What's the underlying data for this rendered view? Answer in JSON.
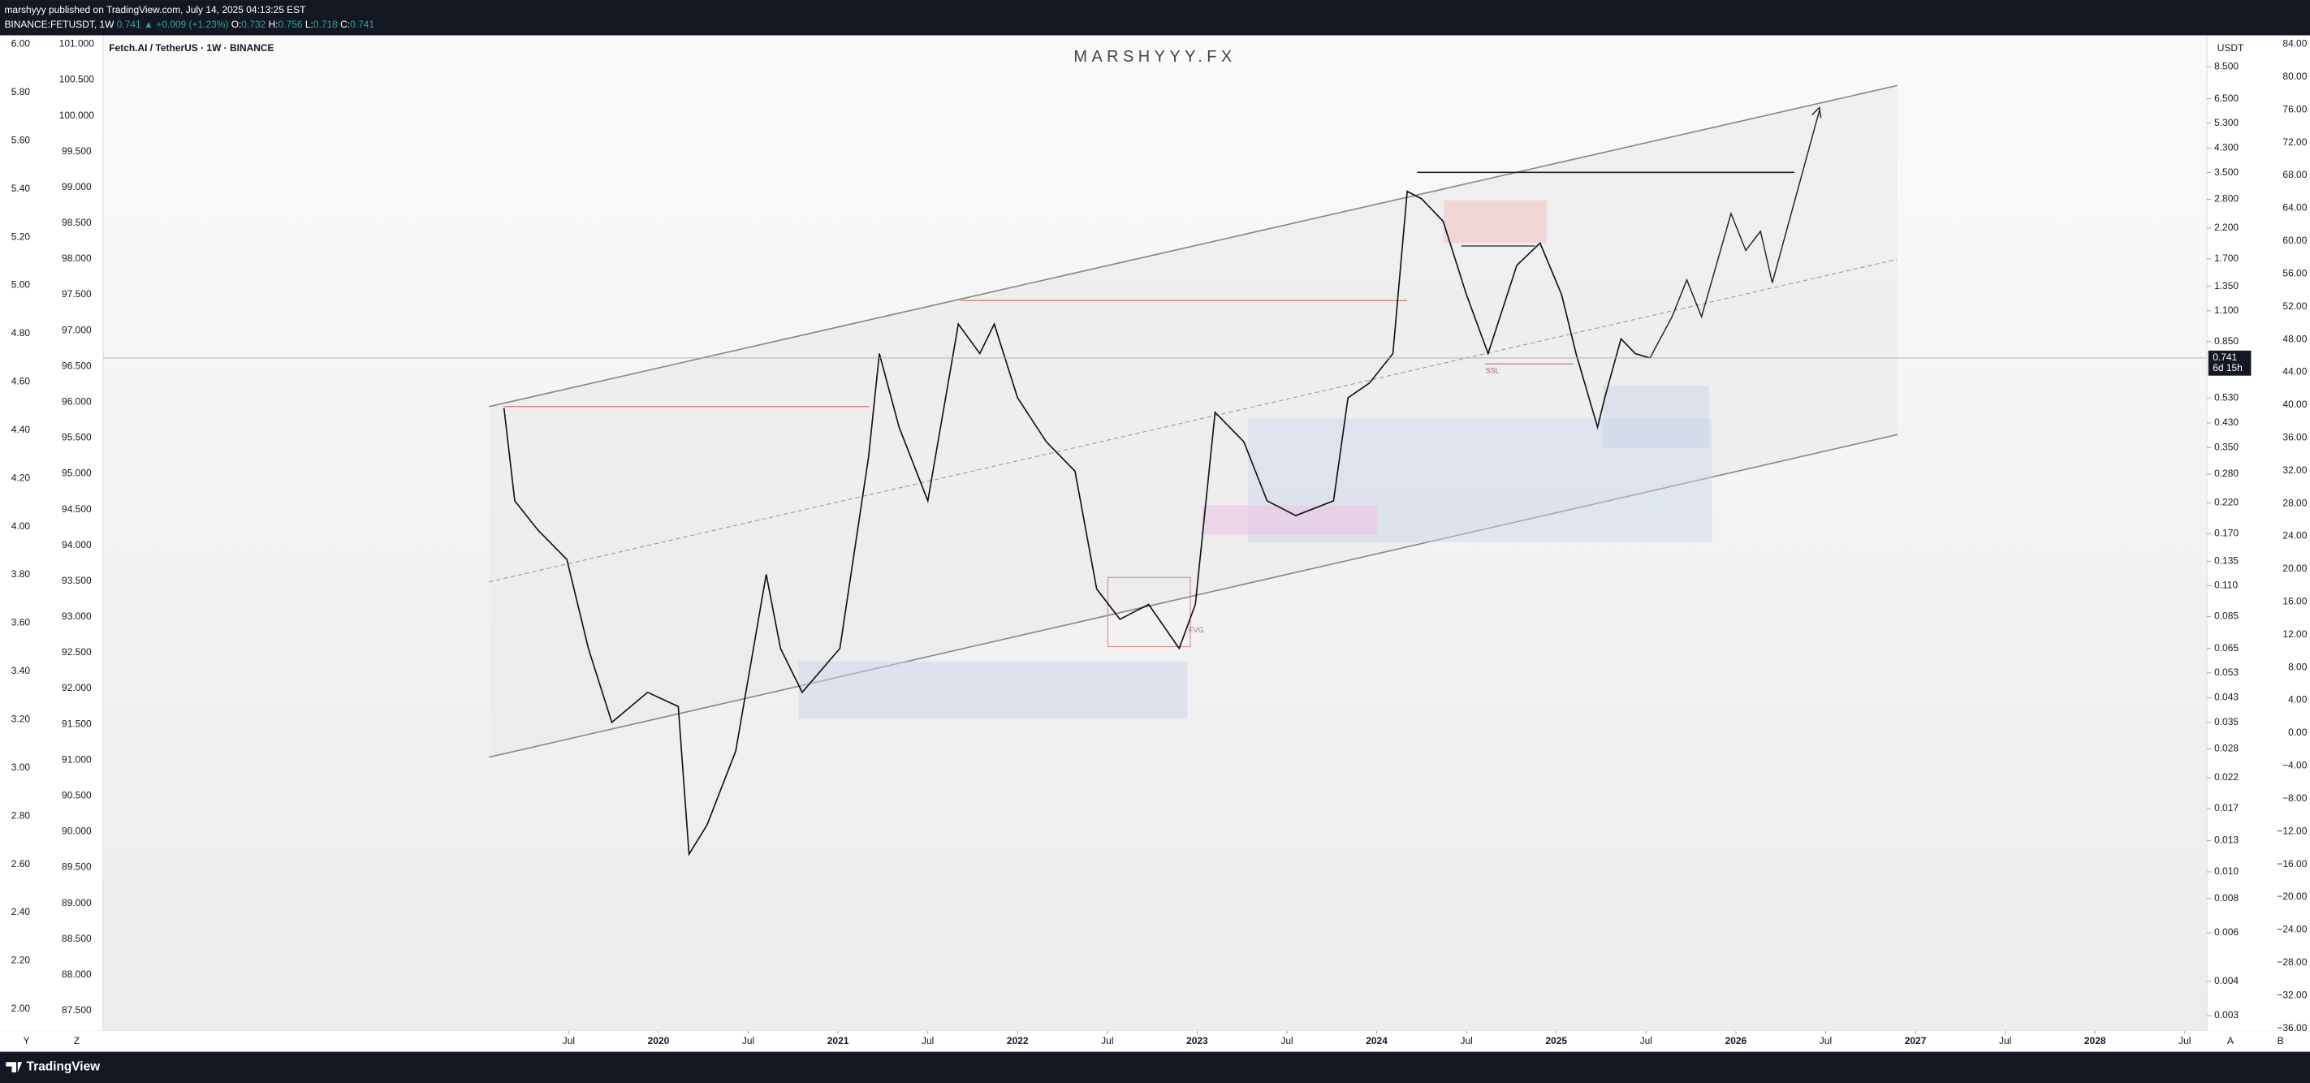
{
  "header": {
    "publisher_line": "marshyyy published on TradingView.com, July 14, 2025 04:13:25 EST",
    "symbol": "BINANCE:FETUSDT, 1W",
    "last": "0.741",
    "change": "▲ +0.009 (+1.23%)",
    "ohlc": [
      {
        "label": "O:",
        "value": "0.732"
      },
      {
        "label": "H:",
        "value": "0.756"
      },
      {
        "label": "L:",
        "value": "0.718"
      },
      {
        "label": "C:",
        "value": "0.741"
      }
    ]
  },
  "chart": {
    "legend": "Fetch.AI / TetherUS · 1W · BINANCE",
    "watermark": "MARSHYYY.FX",
    "ssl_label": "SSL",
    "fvg_label": "FVG",
    "currency": "USDT",
    "last_price": 0.741,
    "countdown": "6d 15h",
    "left_scale_1": [
      "6.00",
      "5.80",
      "5.60",
      "5.40",
      "5.20",
      "5.00",
      "4.80",
      "4.60",
      "4.40",
      "4.20",
      "4.00",
      "3.80",
      "3.60",
      "3.40",
      "3.20",
      "3.00",
      "2.80",
      "2.60",
      "2.40",
      "2.20",
      "2.00"
    ],
    "left_scale_2": [
      "101.000",
      "100.500",
      "100.000",
      "99.500",
      "99.000",
      "98.500",
      "98.000",
      "97.500",
      "97.000",
      "96.500",
      "96.000",
      "95.500",
      "95.000",
      "94.500",
      "94.000",
      "93.500",
      "93.000",
      "92.500",
      "92.000",
      "91.500",
      "91.000",
      "90.500",
      "90.000",
      "89.500",
      "89.000",
      "88.500",
      "88.000",
      "87.500"
    ],
    "right_scale_pct": [
      "84.00",
      "80.00",
      "76.00",
      "72.00",
      "68.00",
      "64.00",
      "60.00",
      "56.00",
      "52.00",
      "48.00",
      "44.00",
      "40.00",
      "36.00",
      "32.00",
      "28.00",
      "24.00",
      "20.00",
      "16.00",
      "12.00",
      "8.00",
      "4.00",
      "0.00",
      "−4.00",
      "−8.00",
      "−12.00",
      "−16.00",
      "−20.00",
      "−24.00",
      "−28.00",
      "−32.00",
      "−36.00"
    ],
    "price_ticks": [
      {
        "value": 8.5,
        "label": "8.500"
      },
      {
        "value": 6.5,
        "label": "6.500"
      },
      {
        "value": 5.3,
        "label": "5.300"
      },
      {
        "value": 4.3,
        "label": "4.300"
      },
      {
        "value": 3.5,
        "label": "3.500"
      },
      {
        "value": 2.8,
        "label": "2.800"
      },
      {
        "value": 2.2,
        "label": "2.200"
      },
      {
        "value": 1.7,
        "label": "1.700"
      },
      {
        "value": 1.35,
        "label": "1.350"
      },
      {
        "value": 1.1,
        "label": "1.100"
      },
      {
        "value": 0.85,
        "label": "0.850"
      },
      {
        "value": 0.53,
        "label": "0.530"
      },
      {
        "value": 0.43,
        "label": "0.430"
      },
      {
        "value": 0.35,
        "label": "0.350"
      },
      {
        "value": 0.28,
        "label": "0.280"
      },
      {
        "value": 0.22,
        "label": "0.220"
      },
      {
        "value": 0.17,
        "label": "0.170"
      },
      {
        "value": 0.135,
        "label": "0.135"
      },
      {
        "value": 0.11,
        "label": "0.110"
      },
      {
        "value": 0.085,
        "label": "0.085"
      },
      {
        "value": 0.065,
        "label": "0.065"
      },
      {
        "value": 0.053,
        "label": "0.053"
      },
      {
        "value": 0.043,
        "label": "0.043"
      },
      {
        "value": 0.035,
        "label": "0.035"
      },
      {
        "value": 0.028,
        "label": "0.028"
      },
      {
        "value": 0.022,
        "label": "0.022"
      },
      {
        "value": 0.017,
        "label": "0.017"
      },
      {
        "value": 0.013,
        "label": "0.013"
      },
      {
        "value": 0.01,
        "label": "0.010"
      },
      {
        "value": 0.008,
        "label": "0.008"
      },
      {
        "value": 0.006,
        "label": "0.006"
      },
      {
        "value": 0.004,
        "label": "0.004"
      },
      {
        "value": 0.003,
        "label": "0.003"
      }
    ],
    "time_ticks": [
      {
        "value": 2019.5,
        "label": "Jul"
      },
      2020,
      {
        "value": 2020.5,
        "label": "Jul"
      },
      2021,
      {
        "value": 2021.5,
        "label": "Jul"
      },
      2022,
      {
        "value": 2022.5,
        "label": "Jul"
      },
      2023,
      {
        "value": 2023.5,
        "label": "Jul"
      },
      2024,
      {
        "value": 2024.5,
        "label": "Jul"
      },
      2025,
      {
        "value": 2025.5,
        "label": "Jul"
      },
      2026,
      {
        "value": 2026.5,
        "label": "Jul"
      },
      2027,
      {
        "value": 2027.5,
        "label": "Jul"
      },
      2028,
      {
        "value": 2028.5,
        "label": "Jul"
      }
    ],
    "price_line": {
      "x": [
        2019.14,
        2019.2,
        2019.33,
        2019.49,
        2019.61,
        2019.74,
        2019.94,
        2020.11,
        2020.17,
        2020.27,
        2020.43,
        2020.6,
        2020.68,
        2020.8,
        2021.01,
        2021.17,
        2021.23,
        2021.34,
        2021.5,
        2021.67,
        2021.79,
        2021.87,
        2022.0,
        2022.16,
        2022.32,
        2022.44,
        2022.57,
        2022.73,
        2022.9,
        2022.99,
        2023.1,
        2023.26,
        2023.39,
        2023.55,
        2023.76,
        2023.84,
        2023.96,
        2024.09,
        2024.17,
        2024.25,
        2024.37,
        2024.5,
        2024.62,
        2024.78,
        2024.91,
        2025.03,
        2025.11,
        2025.23,
        2025.27,
        2025.36,
        2025.44,
        2025.52
      ],
      "values": [
        0.487,
        0.224,
        0.175,
        0.137,
        0.065,
        0.035,
        0.045,
        0.04,
        0.0116,
        0.0148,
        0.0275,
        0.121,
        0.065,
        0.045,
        0.065,
        0.324,
        0.769,
        0.415,
        0.224,
        0.984,
        0.769,
        0.984,
        0.531,
        0.367,
        0.287,
        0.107,
        0.083,
        0.094,
        0.065,
        0.094,
        0.47,
        0.367,
        0.224,
        0.198,
        0.224,
        0.531,
        0.601,
        0.769,
        2.99,
        2.81,
        2.33,
        1.26,
        0.769,
        1.61,
        1.94,
        1.26,
        0.769,
        0.415,
        0.531,
        0.87,
        0.769,
        0.741
      ]
    },
    "corner_labels": [
      "Y",
      "Z",
      "A",
      "B"
    ]
  },
  "footer": {
    "brand": "TradingView"
  }
}
